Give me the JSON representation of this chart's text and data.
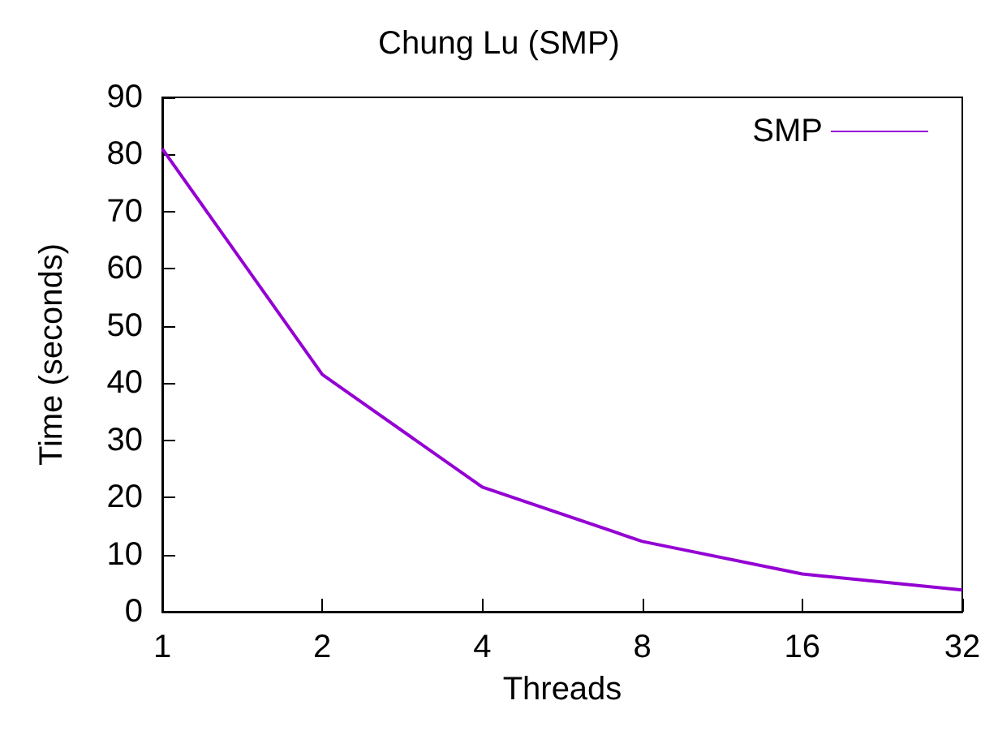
{
  "chart_data": {
    "type": "line",
    "title": "Chung Lu (SMP)",
    "xlabel": "Threads",
    "ylabel": "Time (seconds)",
    "categories": [
      "1",
      "2",
      "4",
      "8",
      "16",
      "32"
    ],
    "series": [
      {
        "name": "SMP",
        "color": "#9400d3",
        "values": [
          81,
          41.5,
          21.8,
          12.3,
          6.6,
          3.8
        ]
      }
    ],
    "ylim": [
      0,
      90
    ],
    "yticks": [
      0,
      10,
      20,
      30,
      40,
      50,
      60,
      70,
      80,
      90
    ],
    "legend": "top right",
    "grid": false,
    "marker": "none",
    "line_style": "solid"
  }
}
